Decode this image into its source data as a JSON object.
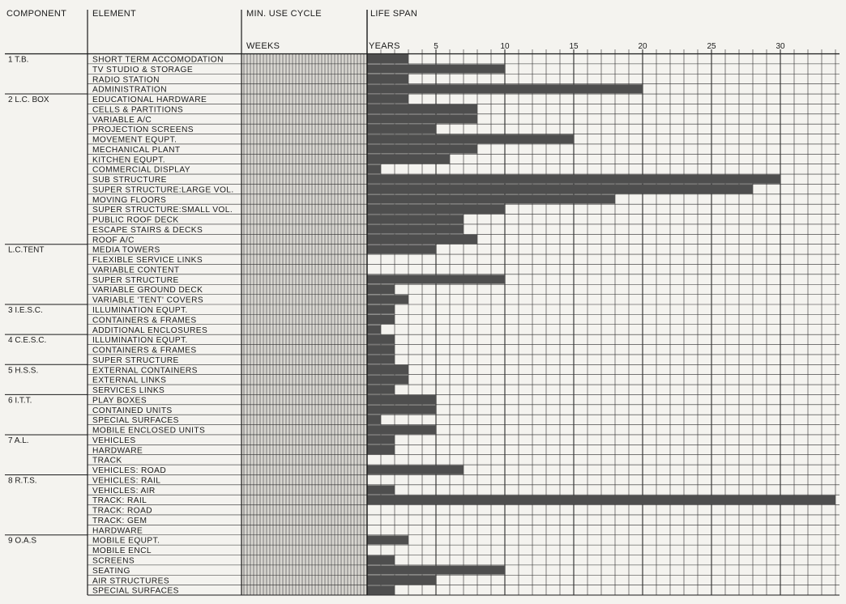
{
  "headers": {
    "component": "COMPONENT",
    "element": "ELEMENT",
    "min_use_cycle": "MIN. USE CYCLE",
    "weeks": "WEEKS",
    "life_span": "LIFE SPAN",
    "years": "YEARS"
  },
  "colors": {
    "background": "#f4f3ef",
    "ink": "#1a1a1a",
    "bar": "#4e4e4e",
    "grid": "#2a2a2a"
  },
  "chart_data": {
    "type": "bar",
    "orientation": "horizontal",
    "xlabel": "YEARS",
    "xlim": [
      0,
      34
    ],
    "x_ticks": [
      5,
      10,
      15,
      20,
      25,
      30
    ],
    "grid": true,
    "groups": [
      {
        "label": "1 T.B.",
        "items": [
          {
            "element": "SHORT TERM ACCOMODATION",
            "years": 3
          },
          {
            "element": "TV STUDIO & STORAGE",
            "years": 10
          },
          {
            "element": "RADIO STATION",
            "years": 3
          },
          {
            "element": "ADMINISTRATION",
            "years": 20
          }
        ]
      },
      {
        "label": "2 L.C. BOX",
        "items": [
          {
            "element": "EDUCATIONAL HARDWARE",
            "years": 3
          },
          {
            "element": "CELLS & PARTITIONS",
            "years": 8
          },
          {
            "element": "VARIABLE A/C",
            "years": 8
          },
          {
            "element": "PROJECTION SCREENS",
            "years": 5
          },
          {
            "element": "MOVEMENT EQUPT.",
            "years": 15
          },
          {
            "element": "MECHANICAL PLANT",
            "years": 8
          },
          {
            "element": "KITCHEN EQUPT.",
            "years": 6
          },
          {
            "element": "COMMERCIAL DISPLAY",
            "years": 1
          },
          {
            "element": "SUB STRUCTURE",
            "years": 30
          },
          {
            "element": "SUPER STRUCTURE:LARGE VOL.",
            "years": 28
          },
          {
            "element": "MOVING FLOORS",
            "years": 18
          },
          {
            "element": "SUPER STRUCTURE:SMALL VOL.",
            "years": 10
          },
          {
            "element": "PUBLIC ROOF DECK",
            "years": 7
          },
          {
            "element": "ESCAPE STAIRS & DECKS",
            "years": 7
          },
          {
            "element": "ROOF A/C",
            "years": 8
          }
        ]
      },
      {
        "label": "L.C.TENT",
        "items": [
          {
            "element": "MEDIA TOWERS",
            "years": 5
          },
          {
            "element": "FLEXIBLE SERVICE LINKS",
            "years": 0
          },
          {
            "element": "VARIABLE CONTENT",
            "years": 0
          },
          {
            "element": "SUPER STRUCTURE",
            "years": 10
          },
          {
            "element": "VARIABLE GROUND DECK",
            "years": 2
          },
          {
            "element": "VARIABLE 'TENT' COVERS",
            "years": 3
          }
        ]
      },
      {
        "label": "3 I.E.S.C.",
        "items": [
          {
            "element": "ILLUMINATION EQUPT.",
            "years": 2
          },
          {
            "element": "CONTAINERS & FRAMES",
            "years": 2
          },
          {
            "element": "ADDITIONAL ENCLOSURES",
            "years": 1
          }
        ]
      },
      {
        "label": "4 C.E.S.C.",
        "items": [
          {
            "element": "ILLUMINATION EQUPT.",
            "years": 2
          },
          {
            "element": "CONTAINERS & FRAMES",
            "years": 2
          },
          {
            "element": "SUPER STRUCTURE",
            "years": 2
          }
        ]
      },
      {
        "label": "5 H.S.S.",
        "items": [
          {
            "element": "EXTERNAL CONTAINERS",
            "years": 3
          },
          {
            "element": "EXTERNAL LINKS",
            "years": 3
          },
          {
            "element": "SERVICES LINKS",
            "years": 2
          }
        ]
      },
      {
        "label": "6 I.T.T.",
        "items": [
          {
            "element": "PLAY BOXES",
            "years": 5
          },
          {
            "element": "CONTAINED UNITS",
            "years": 5
          },
          {
            "element": "SPECIAL SURFACES",
            "years": 1
          },
          {
            "element": "MOBILE ENCLOSED UNITS",
            "years": 5
          }
        ]
      },
      {
        "label": "7 A.L.",
        "items": [
          {
            "element": "VEHICLES",
            "years": 2
          },
          {
            "element": "HARDWARE",
            "years": 2
          },
          {
            "element": "TRACK",
            "years": 0
          },
          {
            "element": "VEHICLES: ROAD",
            "years": 7
          }
        ]
      },
      {
        "label": "8 R.T.S.",
        "items": [
          {
            "element": "VEHICLES: RAIL",
            "years": 0
          },
          {
            "element": "VEHICLES: AIR",
            "years": 2
          },
          {
            "element": "TRACK: RAIL",
            "years": 34
          },
          {
            "element": "TRACK: ROAD",
            "years": 0
          },
          {
            "element": "TRACK: GEM",
            "years": 0
          },
          {
            "element": "HARDWARE",
            "years": 0
          }
        ]
      },
      {
        "label": "9 O.A.S",
        "items": [
          {
            "element": "MOBILE EQUPT.",
            "years": 3
          },
          {
            "element": "MOBILE ENCL",
            "years": 0
          },
          {
            "element": "SCREENS",
            "years": 2
          },
          {
            "element": "SEATING",
            "years": 10
          },
          {
            "element": "AIR STRUCTURES",
            "years": 5
          },
          {
            "element": "SPECIAL SURFACES",
            "years": 2
          }
        ]
      }
    ]
  }
}
